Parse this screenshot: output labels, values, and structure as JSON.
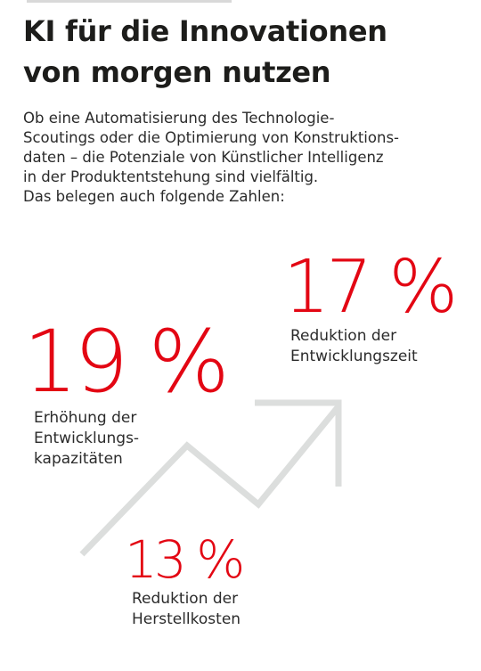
{
  "headline": {
    "line1": "KI für die Innovationen",
    "line2": "von morgen nutzen"
  },
  "intro": {
    "line1": "Ob eine Automatisierung des Technologie-",
    "line2": "Scoutings oder die Optimierung von Konstruktions-",
    "line3": "daten – die Potenziale von Künstlicher Intelligenz",
    "line4": "in der Produktentstehung sind vielfältig.",
    "line5": "Das belegen auch folgende Zahlen:"
  },
  "stats": [
    {
      "value": "17 %",
      "label_line1": "Reduktion der",
      "label_line2": "Entwicklungszeit"
    },
    {
      "value": "19 %",
      "label_line1": "Erhöhung der",
      "label_line2": "Entwicklungs-",
      "label_line3": "kapazitäten"
    },
    {
      "value": "13 %",
      "label_line1": "Reduktion der",
      "label_line2": "Herstellkosten"
    }
  ],
  "colors": {
    "accent": "#e30613",
    "text": "#1d1d1b",
    "arrow": "#dcdedd"
  },
  "decoration": {
    "arrow_icon": "trend-up-arrow-icon"
  }
}
